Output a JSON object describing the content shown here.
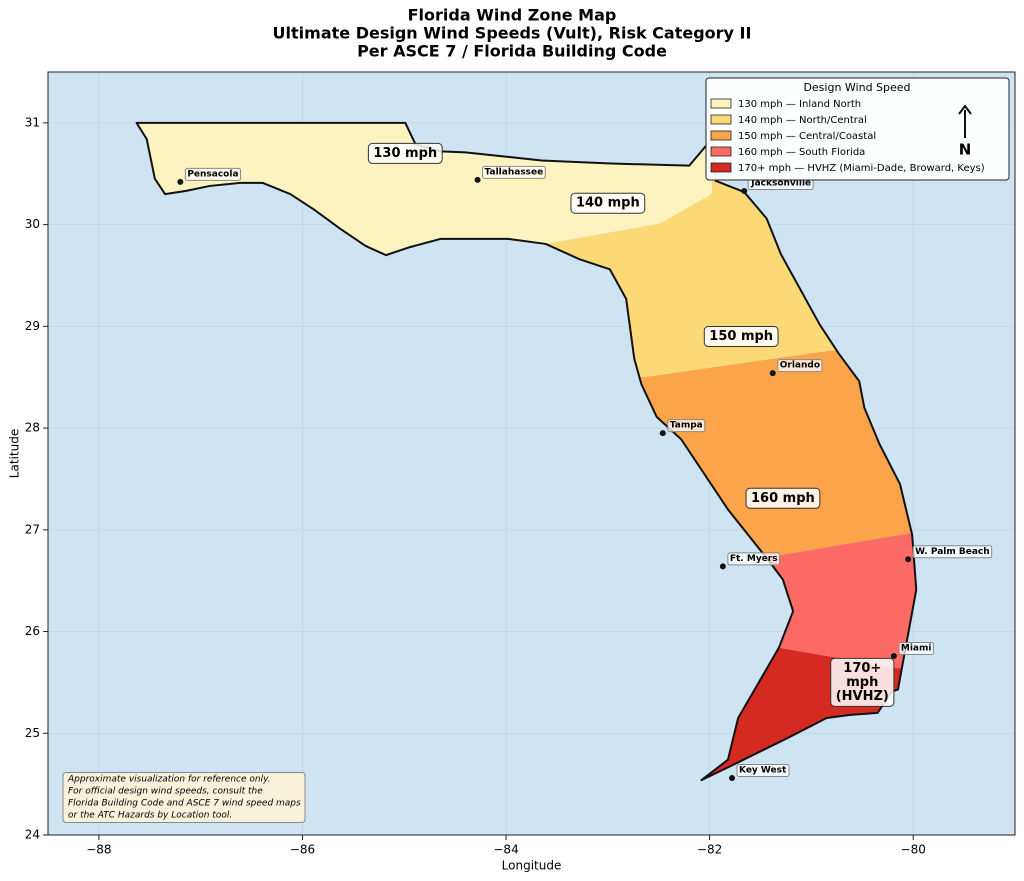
{
  "chart_data": {
    "type": "map",
    "title": [
      "Florida Wind Zone Map",
      "Ultimate Design Wind Speeds (Vult), Risk Category II",
      "Per ASCE 7 / Florida Building Code"
    ],
    "xlabel": "Longitude",
    "ylabel": "Latitude",
    "xlim": [
      -88.5,
      -79
    ],
    "ylim": [
      24,
      31.5
    ],
    "xticks": [
      {
        "value": -88,
        "label": "−88"
      },
      {
        "value": -86,
        "label": "−86"
      },
      {
        "value": -84,
        "label": "−84"
      },
      {
        "value": -82,
        "label": "−82"
      },
      {
        "value": -80,
        "label": "−80"
      }
    ],
    "yticks": [
      24,
      25,
      26,
      27,
      28,
      29,
      30,
      31
    ],
    "grid": true,
    "legend_title": "Design Wind Speed",
    "zones": [
      {
        "name": "130 mph — Inland North",
        "color": "#fdf3c0",
        "label": [
          "130 mph"
        ],
        "label_at": [
          -84.99,
          30.7
        ],
        "polygon": [
          [
            -88.5,
            31.5
          ],
          [
            -81.96,
            31.5
          ],
          [
            -81.96,
            30.74
          ],
          [
            -81.98,
            30.3
          ],
          [
            -82.49,
            30.01
          ],
          [
            -83.61,
            29.81
          ],
          [
            -83.61,
            29.0
          ],
          [
            -88.5,
            29.0
          ]
        ]
      },
      {
        "name": "140 mph — North/Central",
        "color": "#fcd977",
        "label": [
          "140 mph"
        ],
        "label_at": [
          -83.0,
          30.21
        ],
        "polygon": [
          [
            -83.61,
            29.81
          ],
          [
            -82.49,
            30.01
          ],
          [
            -81.98,
            30.3
          ],
          [
            -81.96,
            30.74
          ],
          [
            -81.96,
            31.5
          ],
          [
            -79,
            31.5
          ],
          [
            -79,
            28.76
          ],
          [
            -80.82,
            28.76
          ],
          [
            -82.64,
            28.5
          ],
          [
            -83.61,
            28.5
          ]
        ]
      },
      {
        "name": "150 mph — Central/Coastal",
        "color": "#fba44a",
        "label": [
          "150 mph"
        ],
        "label_at": [
          -81.69,
          28.9
        ],
        "polygon": [
          [
            -79,
            28.76
          ],
          [
            -80.82,
            28.76
          ],
          [
            -82.64,
            28.5
          ],
          [
            -84,
            28.5
          ],
          [
            -84,
            26.75
          ],
          [
            -81.31,
            26.75
          ],
          [
            -80.01,
            26.97
          ],
          [
            -79,
            26.97
          ]
        ]
      },
      {
        "name": "160 mph — South Florida",
        "color": "#fc6a65",
        "label": [
          "160 mph"
        ],
        "label_at": [
          -81.28,
          27.31
        ],
        "polygon": [
          [
            -84,
            26.75
          ],
          [
            -81.31,
            26.75
          ],
          [
            -80.01,
            26.97
          ],
          [
            -79,
            26.97
          ],
          [
            -79,
            25.64
          ],
          [
            -80.16,
            25.64
          ],
          [
            -81.32,
            25.84
          ],
          [
            -84,
            25.84
          ]
        ]
      },
      {
        "name": "170+ mph — HVHZ (Miami-Dade, Broward, Keys)",
        "color": "#d42a22",
        "label": [
          "170+",
          "mph",
          "(HVHZ)"
        ],
        "label_at": [
          -80.5,
          25.5
        ],
        "polygon": [
          [
            -84,
            25.84
          ],
          [
            -81.32,
            25.84
          ],
          [
            -80.16,
            25.64
          ],
          [
            -79,
            25.64
          ],
          [
            -79,
            24
          ],
          [
            -84,
            24
          ]
        ]
      }
    ],
    "outline": [
      [
        -87.63,
        31.0
      ],
      [
        -87.45,
        31.0
      ],
      [
        -84.99,
        31.0
      ],
      [
        -84.89,
        30.79
      ],
      [
        -84.64,
        30.72
      ],
      [
        -84.4,
        30.71
      ],
      [
        -83.65,
        30.63
      ],
      [
        -82.97,
        30.6
      ],
      [
        -82.2,
        30.58
      ],
      [
        -81.98,
        30.84
      ],
      [
        -81.94,
        30.43
      ],
      [
        -81.66,
        30.32
      ],
      [
        -81.44,
        30.06
      ],
      [
        -81.3,
        29.71
      ],
      [
        -80.92,
        29.02
      ],
      [
        -80.73,
        28.73
      ],
      [
        -80.53,
        28.46
      ],
      [
        -80.48,
        28.2
      ],
      [
        -80.33,
        27.84
      ],
      [
        -80.13,
        27.45
      ],
      [
        -80.01,
        26.95
      ],
      [
        -79.97,
        26.41
      ],
      [
        -80.06,
        25.92
      ],
      [
        -80.15,
        25.43
      ],
      [
        -80.21,
        25.41
      ],
      [
        -80.35,
        25.2
      ],
      [
        -80.63,
        25.18
      ],
      [
        -80.85,
        25.15
      ],
      [
        -81.26,
        24.94
      ],
      [
        -81.83,
        24.66
      ],
      [
        -82.08,
        24.54
      ],
      [
        -81.82,
        24.74
      ],
      [
        -81.72,
        25.15
      ],
      [
        -81.32,
        25.84
      ],
      [
        -81.18,
        26.2
      ],
      [
        -81.28,
        26.51
      ],
      [
        -81.43,
        26.71
      ],
      [
        -81.82,
        27.2
      ],
      [
        -82.28,
        27.89
      ],
      [
        -82.52,
        28.11
      ],
      [
        -82.67,
        28.43
      ],
      [
        -82.74,
        28.68
      ],
      [
        -82.82,
        29.27
      ],
      [
        -82.98,
        29.56
      ],
      [
        -83.28,
        29.66
      ],
      [
        -83.61,
        29.81
      ],
      [
        -83.98,
        29.86
      ],
      [
        -84.64,
        29.86
      ],
      [
        -84.94,
        29.78
      ],
      [
        -85.18,
        29.7
      ],
      [
        -85.38,
        29.79
      ],
      [
        -85.63,
        29.96
      ],
      [
        -85.89,
        30.15
      ],
      [
        -86.12,
        30.3
      ],
      [
        -86.39,
        30.41
      ],
      [
        -86.61,
        30.41
      ],
      [
        -86.91,
        30.38
      ],
      [
        -87.15,
        30.33
      ],
      [
        -87.35,
        30.3
      ],
      [
        -87.45,
        30.45
      ],
      [
        -87.53,
        30.84
      ]
    ],
    "cities": [
      {
        "name": "Pensacola",
        "lon": -87.2,
        "lat": 30.42
      },
      {
        "name": "Tallahassee",
        "lon": -84.28,
        "lat": 30.44
      },
      {
        "name": "Jacksonville",
        "lon": -81.66,
        "lat": 30.33
      },
      {
        "name": "Orlando",
        "lon": -81.38,
        "lat": 28.54
      },
      {
        "name": "Tampa",
        "lon": -82.46,
        "lat": 27.95
      },
      {
        "name": "Ft. Myers",
        "lon": -81.87,
        "lat": 26.64
      },
      {
        "name": "W. Palm Beach",
        "lon": -80.05,
        "lat": 26.71
      },
      {
        "name": "Miami",
        "lon": -80.19,
        "lat": 25.76
      },
      {
        "name": "Key West",
        "lon": -81.78,
        "lat": 24.56
      }
    ],
    "north": "N",
    "note": [
      "Approximate visualization for reference only.",
      "For official design wind speeds, consult the",
      "Florida Building Code and ASCE 7 wind speed maps",
      "or the ATC Hazards by Location tool."
    ]
  }
}
